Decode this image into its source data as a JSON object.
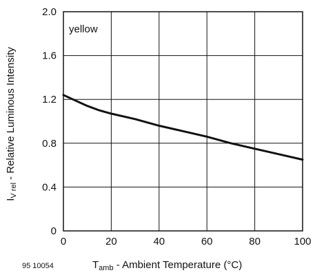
{
  "chart_data": {
    "type": "line",
    "annotation": "yellow",
    "figure_id": "95 10054",
    "xlabel": {
      "symbol": "T",
      "sub": "amb",
      "text": " - Ambient Temperature (°C)"
    },
    "ylabel": {
      "symbol": "I",
      "sub": "V rel",
      "text": " - Relative Luminous Intensity"
    },
    "xlim": [
      0,
      100
    ],
    "ylim": [
      0,
      2.0
    ],
    "xticks": [
      0,
      20,
      40,
      60,
      80,
      100
    ],
    "xtick_labels": [
      "0",
      "20",
      "40",
      "60",
      "80",
      "100"
    ],
    "yticks": [
      0,
      0.4,
      0.8,
      1.2,
      1.6,
      2.0
    ],
    "ytick_labels": [
      "0",
      "0.4",
      "0.8",
      "1.2",
      "1.6",
      "2.0"
    ],
    "grid": true,
    "series": [
      {
        "color": "#111111",
        "x": [
          0,
          5,
          10,
          15,
          20,
          30,
          40,
          50,
          60,
          70,
          80,
          90,
          100
        ],
        "y": [
          1.24,
          1.19,
          1.14,
          1.1,
          1.07,
          1.02,
          0.96,
          0.91,
          0.86,
          0.8,
          0.75,
          0.7,
          0.65
        ]
      }
    ]
  }
}
